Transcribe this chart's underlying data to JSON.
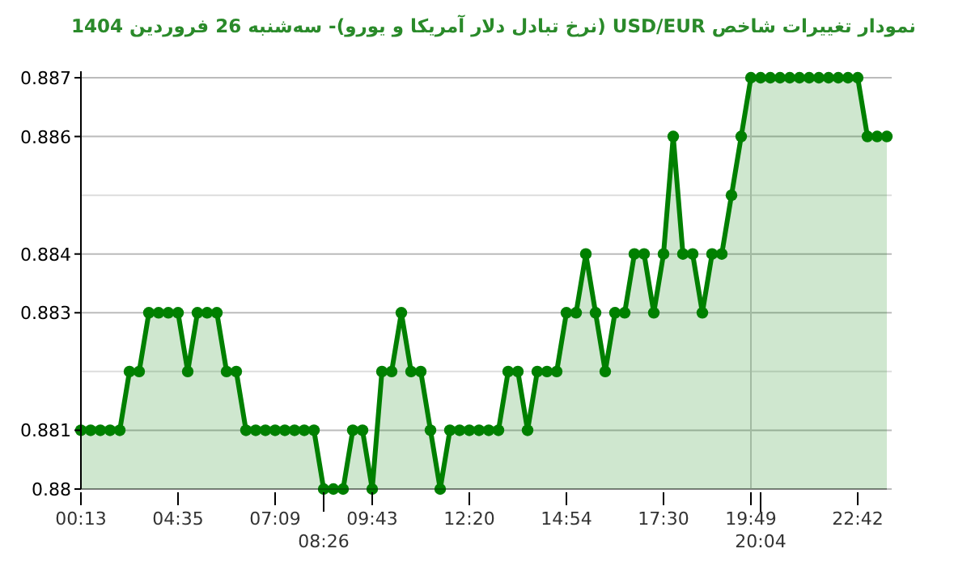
{
  "chart_data": {
    "type": "area",
    "title": "نمودار تغییرات شاخص USD/EUR (نرخ تبادل دلار آمریکا و یورو)- سه‌شنبه  26 فروردین 1404",
    "categories": [
      "00:13",
      null,
      null,
      null,
      null,
      null,
      null,
      null,
      null,
      null,
      "04:35",
      null,
      null,
      null,
      null,
      null,
      null,
      null,
      null,
      null,
      "07:09",
      null,
      null,
      null,
      null,
      "08:26",
      null,
      null,
      null,
      null,
      "09:43",
      null,
      null,
      null,
      null,
      null,
      null,
      null,
      null,
      null,
      "12:20",
      null,
      null,
      null,
      null,
      null,
      null,
      null,
      null,
      null,
      "14:54",
      null,
      null,
      null,
      null,
      null,
      null,
      null,
      null,
      null,
      "17:30",
      null,
      null,
      null,
      null,
      null,
      null,
      null,
      null,
      "19:49",
      "20:04",
      null,
      null,
      null,
      null,
      null,
      null,
      null,
      null,
      null,
      "22:42",
      null,
      null,
      null
    ],
    "series": [
      {
        "color": "#008000",
        "values": [
          0.881,
          0.881,
          0.881,
          0.881,
          0.881,
          0.882,
          0.882,
          0.883,
          0.883,
          0.883,
          0.883,
          0.882,
          0.883,
          0.883,
          0.883,
          0.882,
          0.882,
          0.881,
          0.881,
          0.881,
          0.881,
          0.881,
          0.881,
          0.881,
          0.881,
          0.88,
          0.88,
          0.88,
          0.881,
          0.881,
          0.88,
          0.882,
          0.882,
          0.883,
          0.882,
          0.882,
          0.881,
          0.88,
          0.881,
          0.881,
          0.881,
          0.881,
          0.881,
          0.881,
          0.882,
          0.882,
          0.881,
          0.882,
          0.882,
          0.882,
          0.883,
          0.883,
          0.884,
          0.883,
          0.882,
          0.883,
          0.883,
          0.884,
          0.884,
          0.883,
          0.884,
          0.886,
          0.884,
          0.884,
          0.883,
          0.884,
          0.884,
          0.885,
          0.886,
          0.887,
          0.887,
          0.887,
          0.887,
          0.887,
          0.887,
          0.887,
          0.887,
          0.887,
          0.887,
          0.887,
          0.887,
          0.886,
          0.886,
          0.886
        ]
      }
    ],
    "ylim": [
      0.88,
      0.887
    ],
    "yticks": [
      0.88,
      0.881,
      {
        "value": 0.882,
        "label": null
      },
      0.883,
      0.884,
      {
        "value": 0.885,
        "label": null
      },
      0.886,
      0.887
    ],
    "grid": "y",
    "marker": "circle",
    "line_style": "solid",
    "ref_lines": [
      {
        "axis": "x",
        "value": "19:49",
        "color": "#c8c8c8"
      }
    ]
  }
}
